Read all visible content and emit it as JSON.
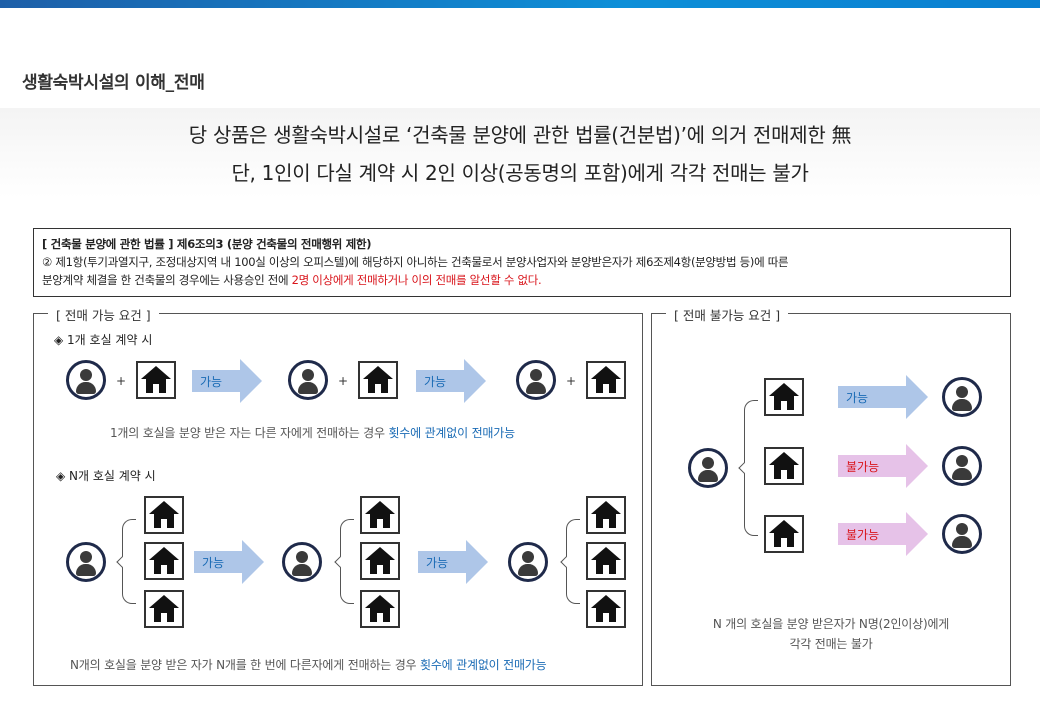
{
  "page": {
    "section_title": "생활숙박시설의 이해_전매",
    "headline_line1": "당 상품은 생활숙박시설로 ‘건축물 분양에 관한 법률(건분법)’에 의거 전매제한 無",
    "headline_line2": "단, 1인이 다실 계약 시 2인 이상(공동명의 포함)에게 각각 전매는 불가"
  },
  "law": {
    "title": "[ 건축물 분양에 관한 법률 ] 제6조의3 (분양 건축물의 전매행위 제한)",
    "line2": "② 제1항(투기과열지구, 조정대상지역 내 100실 이상의 오피스텔)에 해당하지 아니하는 건축물로서 분양사업자와 분양받은자가 제6조제4항(분양방법 등)에 따른",
    "line3_prefix": "분양계약 체결을 한 건축물의 경우에는 사용승인 전에 ",
    "line3_highlight": "2명 이상에게 전매하거나 이의 전매를 알선할 수 없다."
  },
  "left_panel": {
    "label": "[ 전매 가능 요건 ]",
    "case1_title": "◈ 1개 호실 계약 시",
    "case1_note_prefix": "1개의 호실을 분양 받은 자는 다른 자에게 전매하는 경우 ",
    "case1_note_highlight": "횟수에 관계없이 전매가능",
    "case2_title": "◈ N개 호실 계약 시",
    "case2_note_prefix": "N개의 호실을 분양 받은 자가 N개를 한 번에 다른자에게 전매하는 경우 ",
    "case2_note_highlight": "횟수에 관계없이 전매가능",
    "plus": "+",
    "arrow_possible": "가능"
  },
  "right_panel": {
    "label": "[ 전매 불가능 요건 ]",
    "arrow1": "가능",
    "arrow2": "불가능",
    "arrow3": "불가능",
    "note_line1": "N 개의 호실을 분양 받은자가 N명(2인이상)에게",
    "note_line2": "각각 전매는 불가"
  },
  "icons": {
    "person": "person-icon",
    "house": "house-icon",
    "arrow": "right-arrow-icon"
  },
  "colors": {
    "accent_blue": "#1a6bb5",
    "warning_red": "#d9141b",
    "arrow_blue": "#aec6e8",
    "arrow_pink": "#e6c2e8"
  }
}
